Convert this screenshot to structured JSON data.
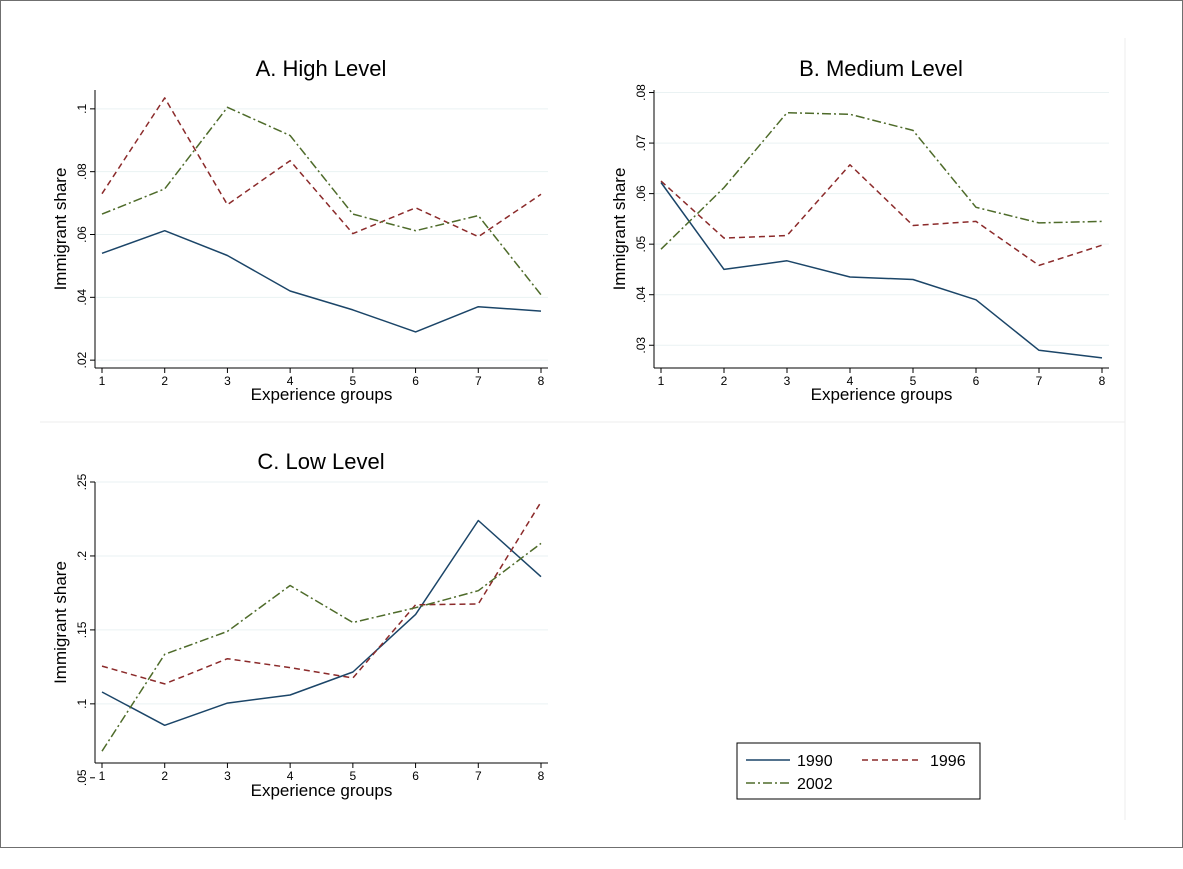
{
  "legend": [
    {
      "name": "1990",
      "color": "#1b4568",
      "dash": "solid"
    },
    {
      "name": "1996",
      "color": "#8b2a2a",
      "dash": "dash"
    },
    {
      "name": "2002",
      "color": "#4e6b2a",
      "dash": "dashdot"
    }
  ],
  "chart_data": [
    {
      "type": "line",
      "title": "A. High Level",
      "xlabel": "Experience groups",
      "ylabel": "Immigrant share",
      "x": [
        1,
        2,
        3,
        4,
        5,
        6,
        7,
        8
      ],
      "xticks": [
        "1",
        "2",
        "3",
        "4",
        "5",
        "6",
        "7",
        "8"
      ],
      "ylim": [
        0.0175,
        0.106
      ],
      "yticks": [
        0.02,
        0.04,
        0.06,
        0.08,
        0.1
      ],
      "ytick_labels": [
        ".02",
        ".04",
        ".06",
        ".08",
        ".1"
      ],
      "grid": true,
      "series": [
        {
          "name": "1990",
          "values": [
            0.054,
            0.0612,
            0.0533,
            0.042,
            0.036,
            0.029,
            0.037,
            0.0356
          ]
        },
        {
          "name": "1996",
          "values": [
            0.073,
            0.1035,
            0.0695,
            0.0835,
            0.0603,
            0.0685,
            0.0593,
            0.0728
          ]
        },
        {
          "name": "2002",
          "values": [
            0.0665,
            0.0745,
            0.1005,
            0.0915,
            0.0665,
            0.0612,
            0.066,
            0.0408
          ]
        }
      ]
    },
    {
      "type": "line",
      "title": "B. Medium Level",
      "xlabel": "Experience groups",
      "ylabel": "Immigrant share",
      "x": [
        1,
        2,
        3,
        4,
        5,
        6,
        7,
        8
      ],
      "xticks": [
        "1",
        "2",
        "3",
        "4",
        "5",
        "6",
        "7",
        "8"
      ],
      "ylim": [
        0.0255,
        0.0805
      ],
      "yticks": [
        0.03,
        0.04,
        0.05,
        0.06,
        0.07,
        0.08
      ],
      "ytick_labels": [
        ".03",
        ".04",
        ".05",
        ".06",
        ".07",
        ".08"
      ],
      "grid": true,
      "series": [
        {
          "name": "1990",
          "values": [
            0.0622,
            0.045,
            0.0467,
            0.0435,
            0.043,
            0.039,
            0.029,
            0.0275
          ]
        },
        {
          "name": "1996",
          "values": [
            0.0625,
            0.0512,
            0.0517,
            0.0657,
            0.0537,
            0.0545,
            0.0458,
            0.0498
          ]
        },
        {
          "name": "2002",
          "values": [
            0.049,
            0.0612,
            0.076,
            0.0757,
            0.0725,
            0.0573,
            0.0542,
            0.0545
          ]
        }
      ]
    },
    {
      "type": "line",
      "title": "C. Low Level",
      "xlabel": "Experience groups",
      "ylabel": "Immigrant share",
      "x": [
        1,
        2,
        3,
        4,
        5,
        6,
        7,
        8
      ],
      "xticks": [
        "1",
        "2",
        "3",
        "4",
        "5",
        "6",
        "7",
        "8"
      ],
      "ylim": [
        0.06,
        0.25
      ],
      "yticks": [
        0.05,
        0.1,
        0.15,
        0.2,
        0.25
      ],
      "ytick_labels": [
        ".05",
        ".1",
        ".15",
        ".2",
        ".25"
      ],
      "grid": true,
      "series": [
        {
          "name": "1990",
          "values": [
            0.108,
            0.0855,
            0.1005,
            0.106,
            0.1215,
            0.1605,
            0.224,
            0.186
          ]
        },
        {
          "name": "1996",
          "values": [
            0.1255,
            0.1135,
            0.1305,
            0.1245,
            0.1175,
            0.167,
            0.1675,
            0.2365
          ]
        },
        {
          "name": "2002",
          "values": [
            0.068,
            0.1335,
            0.149,
            0.18,
            0.155,
            0.165,
            0.1765,
            0.2085
          ]
        }
      ]
    }
  ]
}
